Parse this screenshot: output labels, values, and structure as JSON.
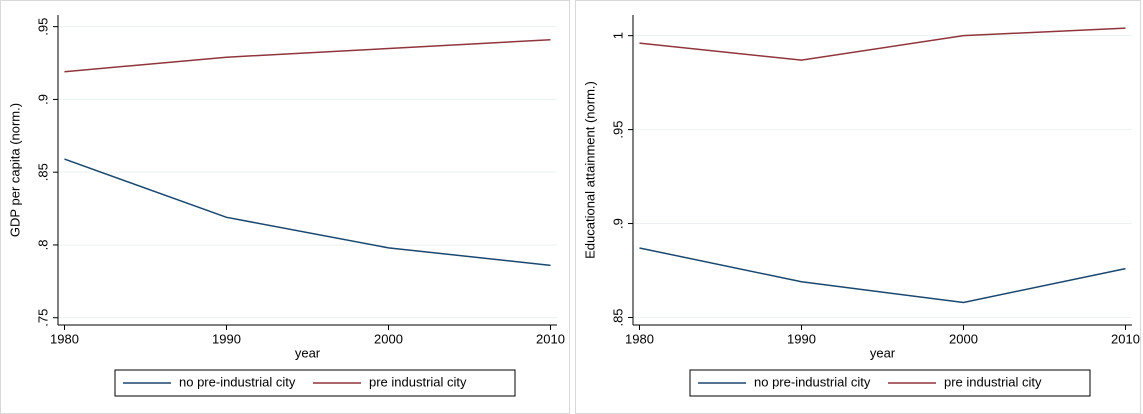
{
  "chart_data": [
    {
      "type": "line",
      "ylabel": "GDP per capita (norm.)",
      "xlabel": "year",
      "x": [
        1980,
        1990,
        2000,
        2010
      ],
      "xlim": [
        1979.6,
        2010.4
      ],
      "xticks": [
        1980,
        1990,
        2000,
        2010
      ],
      "ylim": [
        0.745,
        0.958
      ],
      "yticks": [
        {
          "value": 0.75,
          "label": ".75"
        },
        {
          "value": 0.8,
          "label": ".8"
        },
        {
          "value": 0.85,
          "label": ".85"
        },
        {
          "value": 0.9,
          "label": ".9"
        },
        {
          "value": 0.95,
          "label": ".95"
        }
      ],
      "grid": true,
      "legend": "bottom",
      "series": [
        {
          "name": "no pre-industrial city",
          "color": "#1a476f",
          "values": [
            0.859,
            0.819,
            0.798,
            0.786
          ]
        },
        {
          "name": "pre industrial city",
          "color": "#90353b",
          "values": [
            0.919,
            0.929,
            0.935,
            0.941
          ]
        }
      ]
    },
    {
      "type": "line",
      "ylabel": "Educational attainment (norm.)",
      "xlabel": "year",
      "x": [
        1980,
        1990,
        2000,
        2010
      ],
      "xlim": [
        1979.6,
        2010.4
      ],
      "xticks": [
        1980,
        1990,
        2000,
        2010
      ],
      "ylim": [
        0.846,
        1.011
      ],
      "yticks": [
        {
          "value": 0.85,
          "label": ".85"
        },
        {
          "value": 0.9,
          "label": ".9"
        },
        {
          "value": 0.95,
          "label": ".95"
        },
        1
      ],
      "grid": true,
      "legend": "bottom",
      "series": [
        {
          "name": "no pre-industrial city",
          "color": "#1a476f",
          "values": [
            0.887,
            0.869,
            0.858,
            0.876
          ]
        },
        {
          "name": "pre industrial city",
          "color": "#90353b",
          "values": [
            0.996,
            0.987,
            1.0,
            1.004
          ]
        }
      ]
    }
  ]
}
